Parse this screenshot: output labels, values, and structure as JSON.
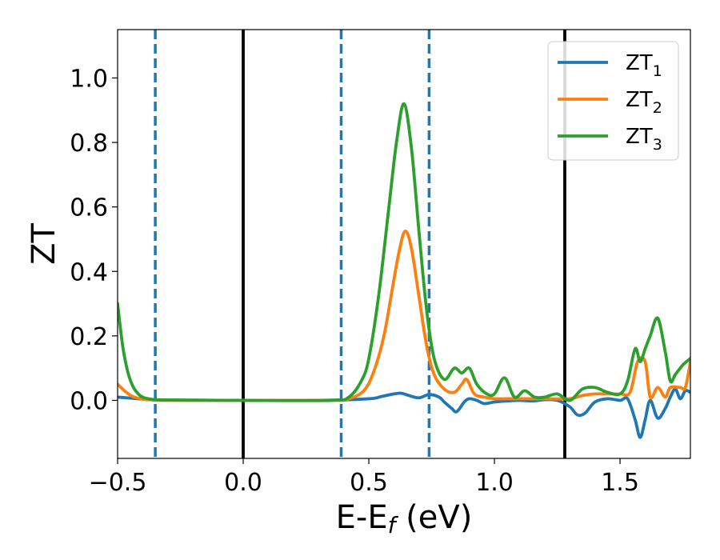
{
  "chart_data": {
    "type": "line",
    "xlabel": "E-E",
    "xlabel_sub": "f",
    "xlabel_unit": " (eV)",
    "ylabel": "ZT",
    "xlim": [
      -0.5,
      1.78
    ],
    "ylim": [
      -0.18,
      1.15
    ],
    "xticks": [
      -0.5,
      0.0,
      0.5,
      1.0,
      1.5
    ],
    "xtick_labels": [
      "−0.5",
      "0.0",
      "0.5",
      "1.0",
      "1.5"
    ],
    "yticks": [
      0.0,
      0.2,
      0.4,
      0.6,
      0.8,
      1.0
    ],
    "ytick_labels": [
      "0.0",
      "0.2",
      "0.4",
      "0.6",
      "0.8",
      "1.0"
    ],
    "grid": false,
    "legend_position": "top-right",
    "vlines": [
      {
        "x": -0.35,
        "style": "dashed",
        "color": "#1f77b4"
      },
      {
        "x": 0.0,
        "style": "solid",
        "color": "#000000"
      },
      {
        "x": 0.39,
        "style": "dashed",
        "color": "#1f77b4"
      },
      {
        "x": 0.74,
        "style": "dashed",
        "color": "#1f77b4"
      },
      {
        "x": 1.28,
        "style": "solid",
        "color": "#000000"
      }
    ],
    "series": [
      {
        "name": "ZT",
        "sub": "1",
        "color": "#1f77b4",
        "x": [
          -0.5,
          -0.45,
          -0.4,
          -0.35,
          -0.3,
          0.0,
          0.3,
          0.5,
          0.55,
          0.6,
          0.63,
          0.66,
          0.7,
          0.74,
          0.78,
          0.8,
          0.83,
          0.85,
          0.88,
          0.9,
          0.93,
          0.96,
          1.0,
          1.05,
          1.1,
          1.15,
          1.2,
          1.25,
          1.3,
          1.33,
          1.36,
          1.4,
          1.45,
          1.5,
          1.53,
          1.56,
          1.58,
          1.6,
          1.62,
          1.65,
          1.68,
          1.7,
          1.72,
          1.74,
          1.76,
          1.78
        ],
        "y": [
          0.01,
          0.007,
          0.004,
          0.002,
          0.001,
          0.0,
          0.0,
          0.005,
          0.012,
          0.02,
          0.022,
          0.015,
          0.008,
          0.018,
          0.01,
          -0.005,
          -0.025,
          -0.035,
          -0.005,
          0.005,
          0.0,
          -0.01,
          -0.005,
          -0.002,
          0.0,
          -0.002,
          0.002,
          0.0,
          -0.02,
          -0.045,
          -0.04,
          -0.005,
          0.005,
          0.0,
          0.005,
          -0.06,
          -0.115,
          -0.06,
          0.0,
          -0.055,
          -0.025,
          0.01,
          0.035,
          0.005,
          0.03,
          0.025
        ]
      },
      {
        "name": "ZT",
        "sub": "2",
        "color": "#ff7f0e",
        "x": [
          -0.5,
          -0.47,
          -0.44,
          -0.4,
          -0.35,
          -0.3,
          0.0,
          0.35,
          0.42,
          0.48,
          0.52,
          0.56,
          0.59,
          0.62,
          0.645,
          0.67,
          0.7,
          0.73,
          0.76,
          0.8,
          0.84,
          0.87,
          0.89,
          0.92,
          0.96,
          1.0,
          1.05,
          1.1,
          1.2,
          1.3,
          1.35,
          1.4,
          1.45,
          1.5,
          1.54,
          1.57,
          1.6,
          1.62,
          1.65,
          1.68,
          1.7,
          1.74,
          1.76,
          1.78
        ],
        "y": [
          0.05,
          0.028,
          0.012,
          0.004,
          0.001,
          0.0,
          0.0,
          0.0,
          0.005,
          0.03,
          0.09,
          0.2,
          0.33,
          0.46,
          0.525,
          0.47,
          0.32,
          0.17,
          0.08,
          0.035,
          0.025,
          0.05,
          0.065,
          0.02,
          0.01,
          0.005,
          0.005,
          0.005,
          0.005,
          0.005,
          0.015,
          0.02,
          0.02,
          0.02,
          0.025,
          0.12,
          0.12,
          0.01,
          0.04,
          0.01,
          0.04,
          0.04,
          0.04,
          0.12
        ]
      },
      {
        "name": "ZT",
        "sub": "3",
        "color": "#2ca02c",
        "x": [
          -0.5,
          -0.48,
          -0.46,
          -0.44,
          -0.42,
          -0.4,
          -0.37,
          -0.35,
          -0.3,
          0.0,
          0.35,
          0.42,
          0.47,
          0.5,
          0.54,
          0.58,
          0.61,
          0.64,
          0.67,
          0.7,
          0.73,
          0.76,
          0.8,
          0.84,
          0.87,
          0.9,
          0.93,
          0.97,
          1.0,
          1.04,
          1.08,
          1.12,
          1.16,
          1.2,
          1.25,
          1.3,
          1.35,
          1.4,
          1.45,
          1.5,
          1.53,
          1.56,
          1.58,
          1.6,
          1.62,
          1.65,
          1.68,
          1.7,
          1.72,
          1.75,
          1.78
        ],
        "y": [
          0.3,
          0.17,
          0.09,
          0.045,
          0.022,
          0.01,
          0.004,
          0.002,
          0.001,
          0.0,
          0.0,
          0.01,
          0.06,
          0.13,
          0.33,
          0.6,
          0.8,
          0.92,
          0.78,
          0.52,
          0.28,
          0.13,
          0.065,
          0.1,
          0.085,
          0.1,
          0.05,
          0.02,
          0.02,
          0.07,
          0.01,
          0.03,
          0.01,
          0.01,
          0.02,
          0.0,
          0.035,
          0.04,
          0.025,
          0.02,
          0.06,
          0.16,
          0.12,
          0.16,
          0.2,
          0.255,
          0.15,
          0.06,
          0.08,
          0.11,
          0.13
        ]
      }
    ]
  }
}
